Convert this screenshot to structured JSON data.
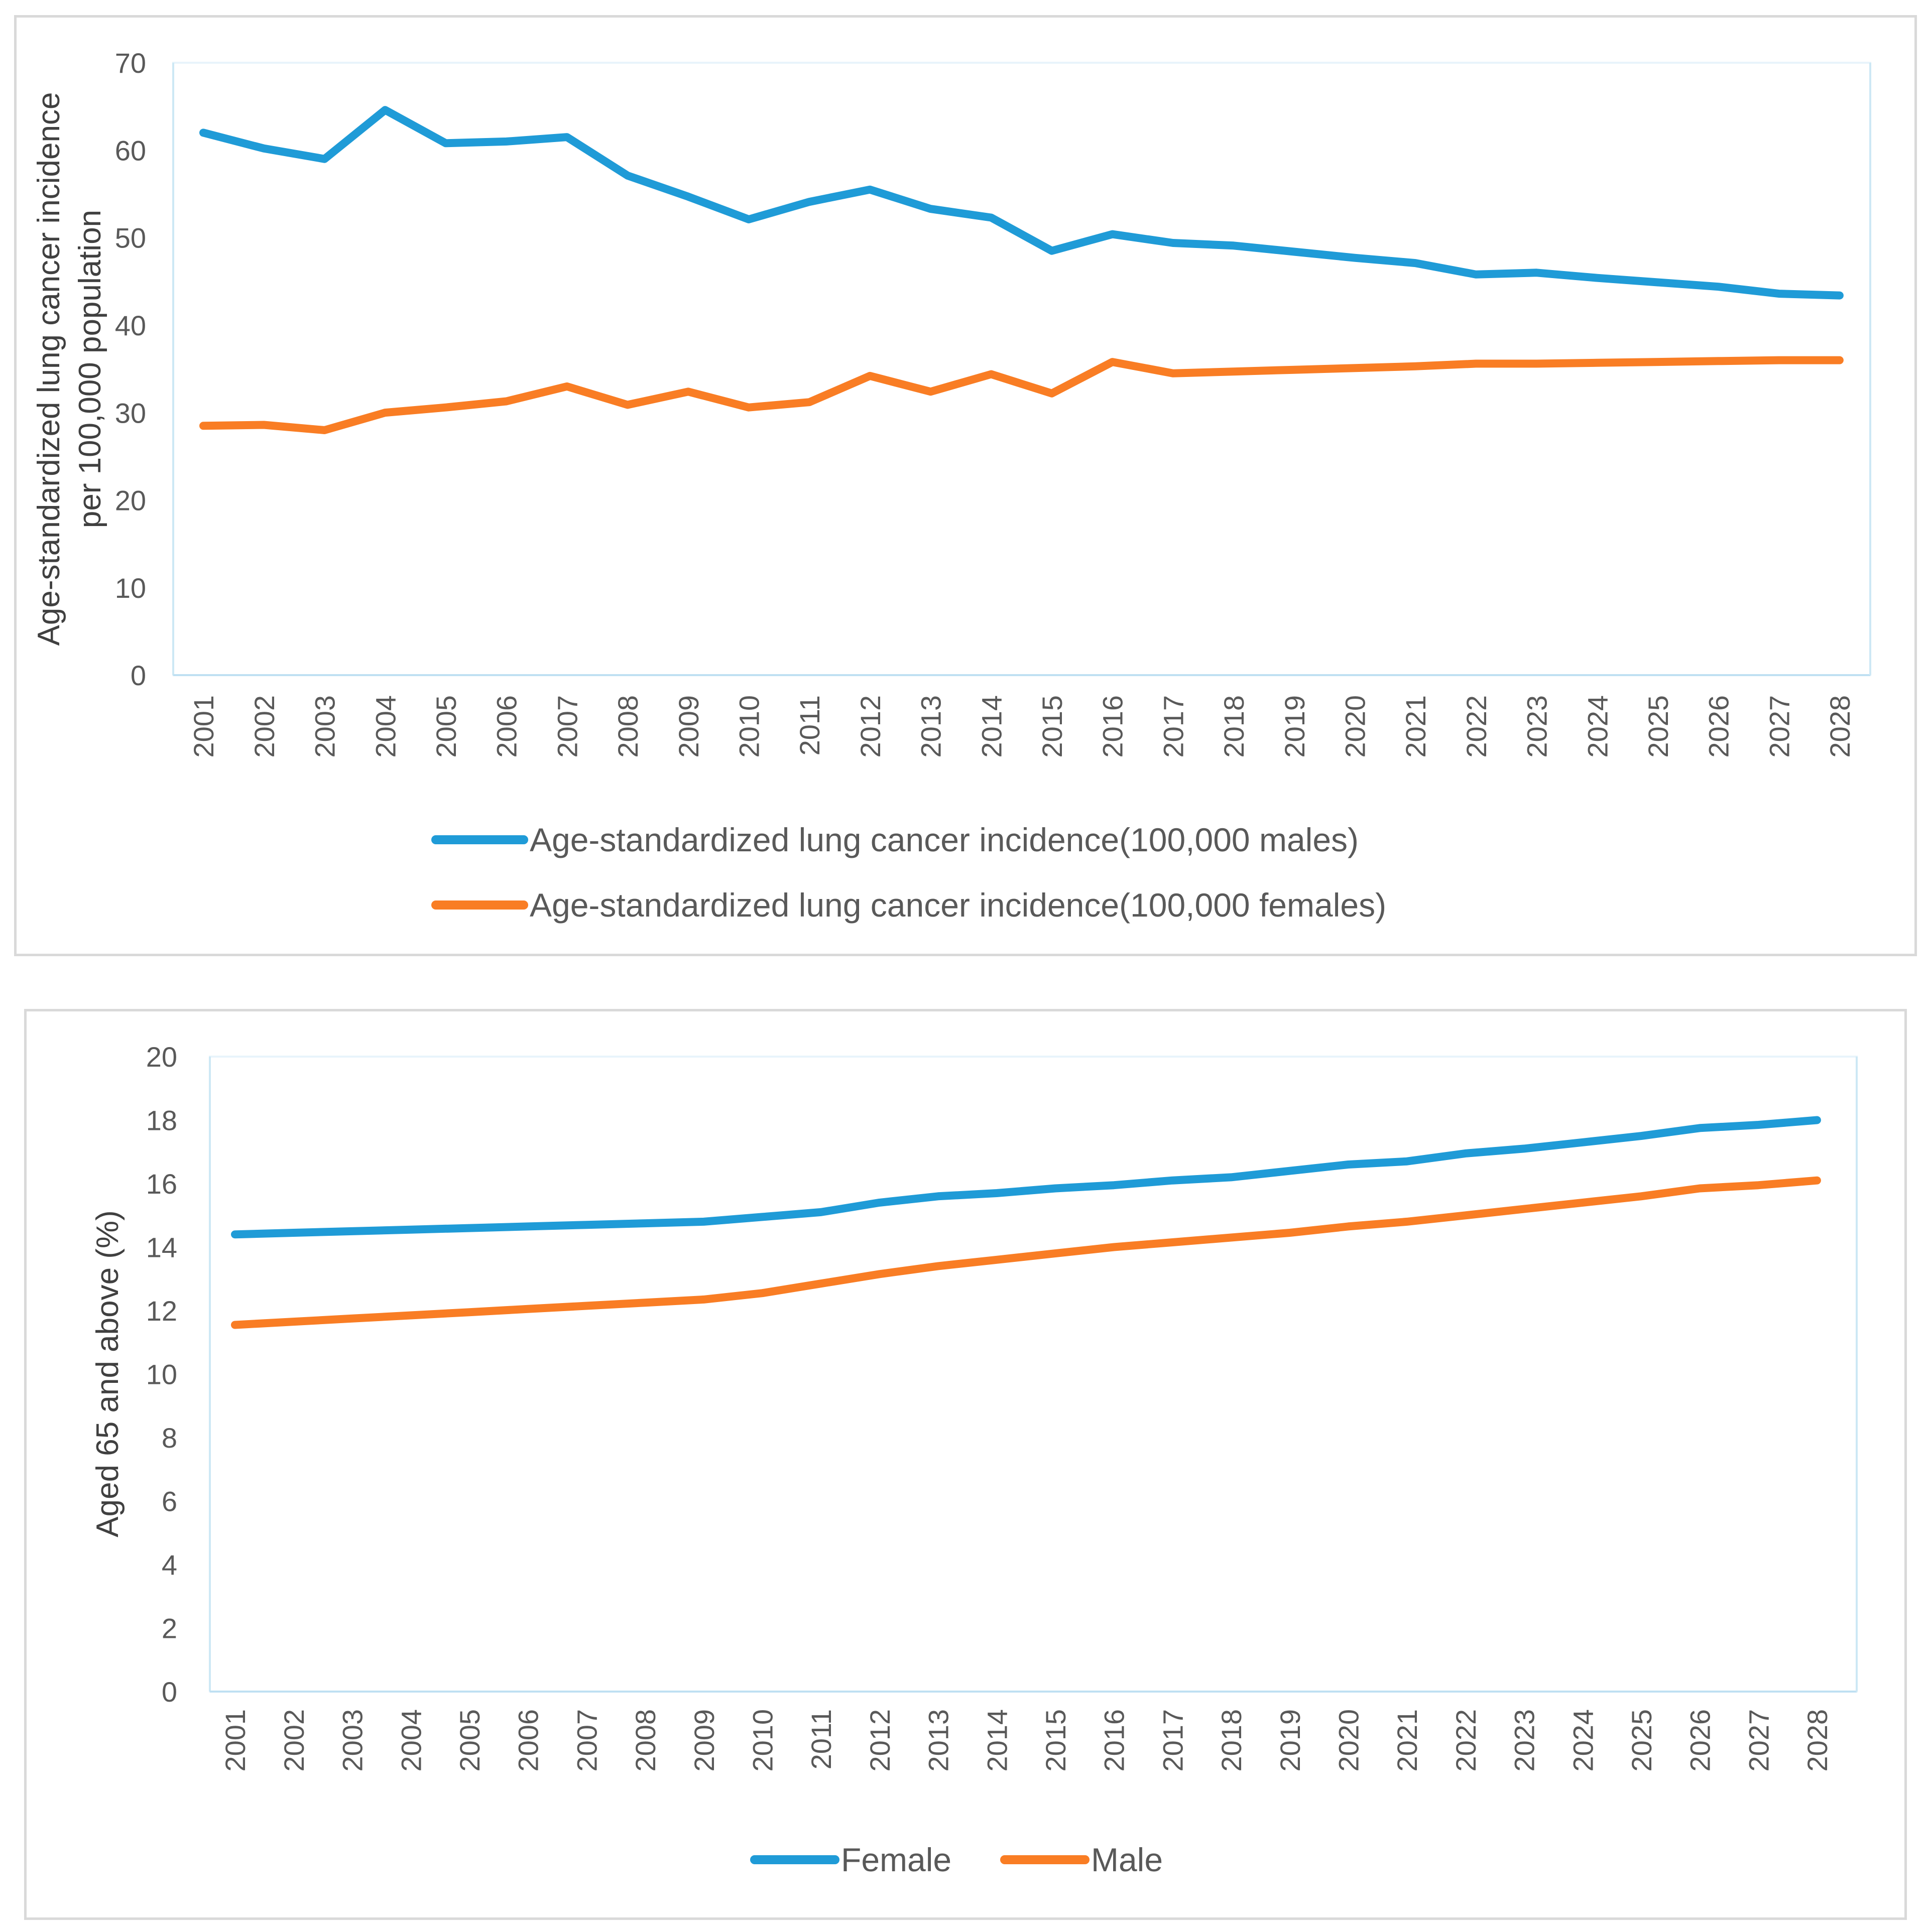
{
  "chart_data": [
    {
      "type": "line",
      "title": "",
      "xlabel": "",
      "ylabel": "Age-standardized lung cancer incidence\nper 100,000 population",
      "ylabel_lines": [
        "Age-standardized lung cancer incidence",
        "per 100,000 population"
      ],
      "ylim": [
        0,
        70
      ],
      "yticks": [
        0,
        10,
        20,
        30,
        40,
        50,
        60,
        70
      ],
      "grid": false,
      "legend_position": "bottom",
      "categories": [
        "2001",
        "2002",
        "2003",
        "2004",
        "2005",
        "2006",
        "2007",
        "2008",
        "2009",
        "2010",
        "2011",
        "2012",
        "2013",
        "2014",
        "2015",
        "2016",
        "2017",
        "2018",
        "2019",
        "2020",
        "2021",
        "2022",
        "2023",
        "2024",
        "2025",
        "2026",
        "2027",
        "2028"
      ],
      "series": [
        {
          "name": "Age-standardized lung cancer incidence(100,000 males)",
          "color": "#1f9bd7",
          "values": [
            62.0,
            60.2,
            59.0,
            64.6,
            60.8,
            61.0,
            61.5,
            57.1,
            54.7,
            52.1,
            54.1,
            55.5,
            53.3,
            52.3,
            48.5,
            50.4,
            49.4,
            49.1,
            48.4,
            47.7,
            47.1,
            45.8,
            46.0,
            45.4,
            44.9,
            44.4,
            43.6,
            43.4
          ]
        },
        {
          "name": "Age-standardized lung cancer incidence(100,000 females)",
          "color": "#f97d24",
          "values": [
            28.5,
            28.6,
            28.0,
            30.0,
            30.6,
            31.3,
            33.0,
            30.9,
            32.4,
            30.6,
            31.2,
            34.2,
            32.4,
            34.4,
            32.2,
            35.8,
            34.5,
            34.7,
            34.9,
            35.1,
            35.3,
            35.6,
            35.6,
            35.7,
            35.8,
            35.9,
            36.0,
            36.0
          ]
        }
      ]
    },
    {
      "type": "line",
      "title": "",
      "xlabel": "",
      "ylabel": "Aged 65 and above (%)",
      "ylabel_lines": [
        "Aged 65 and above (%)"
      ],
      "ylim": [
        0,
        20
      ],
      "yticks": [
        0,
        2,
        4,
        6,
        8,
        10,
        12,
        14,
        16,
        18,
        20
      ],
      "grid": false,
      "legend_position": "bottom",
      "categories": [
        "2001",
        "2002",
        "2003",
        "2004",
        "2005",
        "2006",
        "2007",
        "2008",
        "2009",
        "2010",
        "2011",
        "2012",
        "2013",
        "2014",
        "2015",
        "2016",
        "2017",
        "2018",
        "2019",
        "2020",
        "2021",
        "2022",
        "2023",
        "2024",
        "2025",
        "2026",
        "2027",
        "2028"
      ],
      "series": [
        {
          "name": "Female",
          "color": "#1f9bd7",
          "values": [
            14.4,
            14.45,
            14.5,
            14.55,
            14.6,
            14.65,
            14.7,
            14.75,
            14.8,
            14.95,
            15.1,
            15.4,
            15.6,
            15.7,
            15.85,
            15.95,
            16.1,
            16.2,
            16.4,
            16.6,
            16.7,
            16.95,
            17.1,
            17.3,
            17.5,
            17.75,
            17.85,
            18.0
          ]
        },
        {
          "name": "Male",
          "color": "#f97d24",
          "values": [
            11.55,
            11.65,
            11.75,
            11.85,
            11.95,
            12.05,
            12.15,
            12.25,
            12.35,
            12.55,
            12.85,
            13.15,
            13.4,
            13.6,
            13.8,
            14.0,
            14.15,
            14.3,
            14.45,
            14.65,
            14.8,
            15.0,
            15.2,
            15.4,
            15.6,
            15.85,
            15.95,
            16.1
          ]
        }
      ]
    }
  ]
}
